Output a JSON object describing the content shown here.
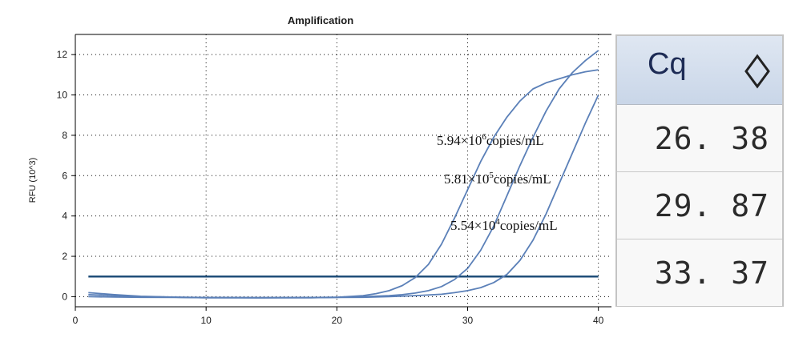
{
  "chart_data": {
    "type": "line",
    "title": "Amplification",
    "xlabel": "",
    "ylabel": "RFU (10^3)",
    "xlim": [
      0,
      41
    ],
    "ylim": [
      -0.5,
      13
    ],
    "xticks": [
      0,
      10,
      20,
      30,
      40
    ],
    "yticks": [
      0,
      2,
      4,
      6,
      8,
      10,
      12
    ],
    "grid": true,
    "threshold": 1.0,
    "colors": {
      "curve": "#5b80b8",
      "threshold": "#1f4e79",
      "grid": "#000000"
    },
    "series": [
      {
        "x": [
          1,
          3,
          5,
          8,
          10,
          14,
          18,
          20,
          22,
          23,
          24,
          25,
          26,
          27,
          28,
          29,
          30,
          31,
          32,
          33,
          34,
          35,
          36,
          37,
          38,
          39,
          40
        ],
        "values": [
          0.2,
          0.1,
          0.02,
          -0.03,
          -0.05,
          -0.06,
          -0.05,
          -0.03,
          0.05,
          0.15,
          0.3,
          0.55,
          0.95,
          1.6,
          2.6,
          3.9,
          5.3,
          6.7,
          7.9,
          8.9,
          9.7,
          10.3,
          10.6,
          10.8,
          11.0,
          11.15,
          11.25
        ]
      },
      {
        "x": [
          1,
          3,
          5,
          8,
          10,
          14,
          18,
          20,
          22,
          24,
          25,
          26,
          27,
          28,
          29,
          30,
          31,
          32,
          33,
          34,
          35,
          36,
          37,
          38,
          39,
          40
        ],
        "values": [
          0.1,
          0.05,
          0.0,
          -0.03,
          -0.04,
          -0.05,
          -0.04,
          -0.03,
          0.0,
          0.05,
          0.1,
          0.18,
          0.3,
          0.5,
          0.85,
          1.4,
          2.3,
          3.5,
          5.0,
          6.5,
          7.9,
          9.2,
          10.3,
          11.1,
          11.7,
          12.2
        ]
      },
      {
        "x": [
          1,
          3,
          5,
          8,
          10,
          14,
          18,
          20,
          22,
          24,
          26,
          28,
          29,
          30,
          31,
          32,
          33,
          34,
          35,
          36,
          37,
          38,
          39,
          40
        ],
        "values": [
          0.0,
          -0.02,
          -0.03,
          -0.04,
          -0.05,
          -0.05,
          -0.05,
          -0.04,
          -0.03,
          0.0,
          0.05,
          0.12,
          0.2,
          0.3,
          0.45,
          0.7,
          1.1,
          1.8,
          2.8,
          4.1,
          5.6,
          7.1,
          8.6,
          10.0
        ]
      }
    ],
    "annotations": [
      {
        "base": "5.94×10",
        "sup": "6",
        "rest": "copies/mL"
      },
      {
        "base": "5.81×10",
        "sup": "5",
        "rest": "copies/mL"
      },
      {
        "base": "5.54×10",
        "sup": "4",
        "rest": "copies/mL"
      }
    ]
  },
  "cq_table": {
    "header": "Cq",
    "sort_icon": "diamond-sort-icon",
    "values": [
      "26. 38",
      "29. 87",
      "33. 37"
    ]
  }
}
